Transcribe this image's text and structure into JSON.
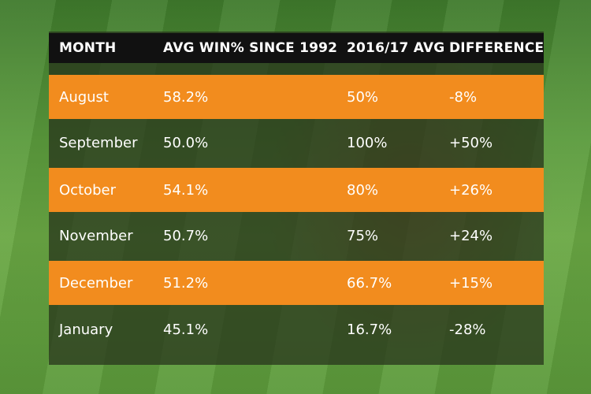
{
  "table": {
    "columns": [
      "MONTH",
      "AVG WIN% SINCE 1992",
      "2016/17 AVG",
      "DIFFERENCE"
    ],
    "rows": [
      [
        "August",
        "58.2%",
        "50%",
        "-8%"
      ],
      [
        "September",
        "50.0%",
        "100%",
        "+50%"
      ],
      [
        "October",
        "54.1%",
        "80%",
        "+26%"
      ],
      [
        "November",
        "50.7%",
        "75%",
        "+24%"
      ],
      [
        "December",
        "51.2%",
        "66.7%",
        "+15%"
      ],
      [
        "January",
        "45.1%",
        "16.7%",
        "-28%"
      ]
    ]
  }
}
